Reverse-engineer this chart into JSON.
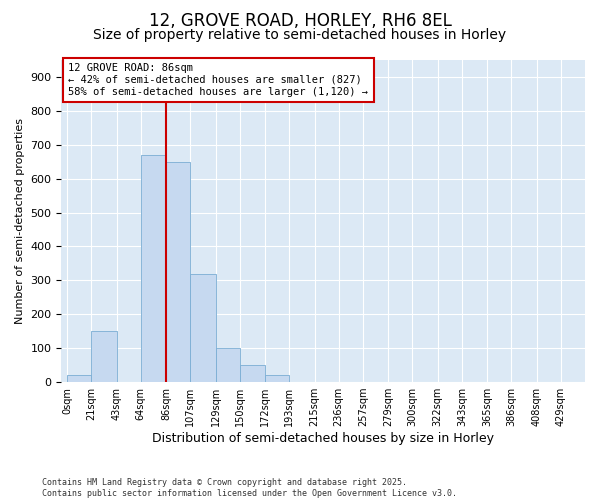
{
  "title1": "12, GROVE ROAD, HORLEY, RH6 8EL",
  "title2": "Size of property relative to semi-detached houses in Horley",
  "xlabel": "Distribution of semi-detached houses by size in Horley",
  "ylabel": "Number of semi-detached properties",
  "bin_labels": [
    "0sqm",
    "21sqm",
    "43sqm",
    "64sqm",
    "86sqm",
    "107sqm",
    "129sqm",
    "150sqm",
    "172sqm",
    "193sqm",
    "215sqm",
    "236sqm",
    "257sqm",
    "279sqm",
    "300sqm",
    "322sqm",
    "343sqm",
    "365sqm",
    "386sqm",
    "408sqm",
    "429sqm"
  ],
  "bin_edges": [
    0,
    21,
    43,
    64,
    86,
    107,
    129,
    150,
    172,
    193,
    215,
    236,
    257,
    279,
    300,
    322,
    343,
    365,
    386,
    408,
    429
  ],
  "bar_heights": [
    20,
    150,
    0,
    670,
    650,
    320,
    100,
    50,
    20,
    0,
    1,
    0,
    1,
    0,
    0,
    0,
    0,
    0,
    0,
    0
  ],
  "bar_color": "#c6d9f0",
  "bar_edge_color": "#7aadd4",
  "property_size": 86,
  "vline_color": "#cc0000",
  "annotation_text": "12 GROVE ROAD: 86sqm\n← 42% of semi-detached houses are smaller (827)\n58% of semi-detached houses are larger (1,120) →",
  "annotation_box_color": "#cc0000",
  "ylim": [
    0,
    950
  ],
  "yticks": [
    0,
    100,
    200,
    300,
    400,
    500,
    600,
    700,
    800,
    900
  ],
  "background_color": "#dce9f5",
  "fig_background_color": "#ffffff",
  "footer_text": "Contains HM Land Registry data © Crown copyright and database right 2025.\nContains public sector information licensed under the Open Government Licence v3.0.",
  "title_fontsize": 12,
  "subtitle_fontsize": 10
}
